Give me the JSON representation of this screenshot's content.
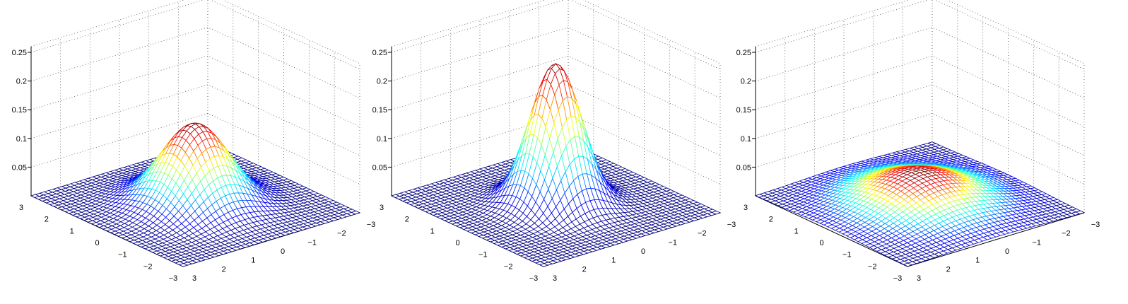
{
  "chart_data": [
    {
      "type": "surface",
      "colormap": "jet",
      "x": {
        "min": -3,
        "max": 3,
        "ticks": [
          -3,
          -2,
          -1,
          0,
          1,
          2,
          3
        ],
        "tick_labels": [
          "−3",
          "−2",
          "−1",
          "0",
          "1",
          "2",
          "3"
        ]
      },
      "y": {
        "min": -3,
        "max": 3,
        "ticks": [
          -3,
          -2,
          -1,
          0,
          1,
          2,
          3
        ],
        "tick_labels": [
          "−3",
          "−2",
          "−1",
          "0",
          "1",
          "2",
          "3"
        ]
      },
      "z": {
        "min": 0,
        "max": 0.26,
        "ticks": [
          0.05,
          0.1,
          0.15,
          0.2,
          0.25
        ],
        "tick_labels": [
          "0.05",
          "0.1",
          "0.15",
          "0.2",
          "0.25"
        ]
      },
      "grid": true,
      "surface": {
        "function": "2D Gaussian",
        "mean": [
          0,
          0
        ],
        "peak": 0.14,
        "sigma": 0.9,
        "mesh_steps": 40
      }
    },
    {
      "type": "surface",
      "colormap": "jet",
      "x": {
        "min": -3,
        "max": 3,
        "ticks": [
          -3,
          -2,
          -1,
          0,
          1,
          2,
          3
        ],
        "tick_labels": [
          "−3",
          "−2",
          "−1",
          "0",
          "1",
          "2",
          "3"
        ]
      },
      "y": {
        "min": -3,
        "max": 3,
        "ticks": [
          -3,
          -2,
          -1,
          0,
          1,
          2,
          3
        ],
        "tick_labels": [
          "−3",
          "−2",
          "−1",
          "0",
          "1",
          "2",
          "3"
        ]
      },
      "z": {
        "min": 0,
        "max": 0.26,
        "ticks": [
          0.05,
          0.1,
          0.15,
          0.2,
          0.25
        ],
        "tick_labels": [
          "0.05",
          "0.1",
          "0.15",
          "0.2",
          "0.25"
        ]
      },
      "grid": true,
      "surface": {
        "function": "2D Gaussian",
        "mean": [
          0,
          0
        ],
        "peak": 0.245,
        "sigma": 0.68,
        "mesh_steps": 40
      }
    },
    {
      "type": "surface",
      "colormap": "jet",
      "x": {
        "min": -3,
        "max": 3,
        "ticks": [
          -3,
          -2,
          -1,
          0,
          1,
          2,
          3
        ],
        "tick_labels": [
          "−3",
          "−2",
          "−1",
          "0",
          "1",
          "2",
          "3"
        ]
      },
      "y": {
        "min": -3,
        "max": 3,
        "ticks": [
          -3,
          -2,
          -1,
          0,
          1,
          2,
          3
        ],
        "tick_labels": [
          "−3",
          "−2",
          "−1",
          "0",
          "1",
          "2",
          "3"
        ]
      },
      "z": {
        "min": 0,
        "max": 0.26,
        "ticks": [
          0.05,
          0.1,
          0.15,
          0.2,
          0.25
        ],
        "tick_labels": [
          "0.05",
          "0.1",
          "0.15",
          "0.2",
          "0.25"
        ]
      },
      "grid": true,
      "surface": {
        "function": "2D Gaussian",
        "mean": [
          0,
          0
        ],
        "peak": 0.055,
        "sigma": 1.35,
        "mesh_steps": 40
      }
    }
  ]
}
